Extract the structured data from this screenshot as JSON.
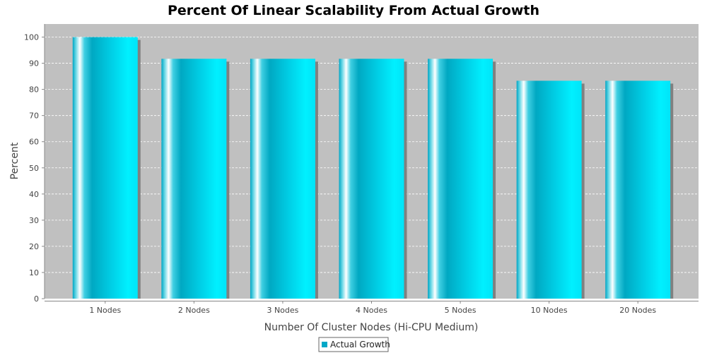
{
  "chart_data": {
    "type": "bar",
    "title": "Percent Of Linear Scalability From Actual Growth",
    "xlabel": "Number Of Cluster Nodes (Hi-CPU Medium)",
    "ylabel": "Percent",
    "categories": [
      "1 Nodes",
      "2 Nodes",
      "3 Nodes",
      "4 Nodes",
      "5 Nodes",
      "10 Nodes",
      "20 Nodes"
    ],
    "series": [
      {
        "name": "Actual Growth",
        "values": [
          100,
          91.7,
          91.7,
          91.7,
          91.7,
          83.3,
          83.3
        ]
      }
    ],
    "ylim": [
      0,
      105
    ],
    "yticks": [
      0,
      10,
      20,
      30,
      40,
      50,
      60,
      70,
      80,
      90,
      100
    ],
    "grid": true,
    "legend_position": "bottom-center",
    "colors": {
      "plot_background": "#c0c0c0",
      "bar_main": "#00c8e0",
      "bar_highlight": "#ffffff",
      "bar_shadow": "#808080",
      "gridline": "#ffffff"
    }
  }
}
